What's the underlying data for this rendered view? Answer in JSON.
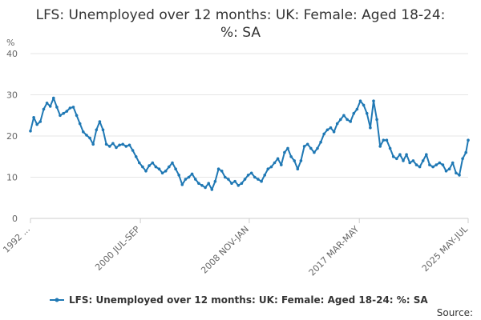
{
  "chart_data": {
    "type": "line",
    "title_lines": [
      "LFS: Unemployed over 12 months: UK: Female: Aged 18-24:",
      "%: SA"
    ],
    "ylabel": "%",
    "ylim": [
      0,
      40
    ],
    "yticks": [
      0,
      10,
      20,
      30,
      40
    ],
    "xlim": [
      1992.25,
      2025.42
    ],
    "x_tick_labels": [
      {
        "x": 1992.25,
        "label": "1992 ..."
      },
      {
        "x": 2000.58,
        "label": "2000 JUL-SEP"
      },
      {
        "x": 2008.83,
        "label": "2008 NOV-JAN"
      },
      {
        "x": 2017.17,
        "label": "2017 MAR-MAY"
      },
      {
        "x": 2025.42,
        "label": "2025 MAY-JUL"
      }
    ],
    "grid": true,
    "legend_position": "bottom",
    "series": [
      {
        "name": "LFS: Unemployed over 12 months: UK: Female: Aged 18-24: %: SA",
        "color": "#1f78b4",
        "points": [
          [
            1992.25,
            21.2
          ],
          [
            1992.5,
            24.5
          ],
          [
            1992.75,
            22.8
          ],
          [
            1993.0,
            23.5
          ],
          [
            1993.25,
            26.5
          ],
          [
            1993.5,
            28.0
          ],
          [
            1993.75,
            27.2
          ],
          [
            1994.0,
            29.2
          ],
          [
            1994.25,
            27.0
          ],
          [
            1994.5,
            25.0
          ],
          [
            1994.75,
            25.5
          ],
          [
            1995.0,
            26.0
          ],
          [
            1995.25,
            26.8
          ],
          [
            1995.5,
            27.0
          ],
          [
            1995.75,
            25.0
          ],
          [
            1996.0,
            23.0
          ],
          [
            1996.25,
            21.0
          ],
          [
            1996.5,
            20.2
          ],
          [
            1996.75,
            19.5
          ],
          [
            1997.0,
            18.0
          ],
          [
            1997.25,
            21.5
          ],
          [
            1997.5,
            23.5
          ],
          [
            1997.75,
            21.5
          ],
          [
            1998.0,
            18.0
          ],
          [
            1998.25,
            17.5
          ],
          [
            1998.5,
            18.2
          ],
          [
            1998.75,
            17.2
          ],
          [
            1999.0,
            17.8
          ],
          [
            1999.25,
            18.0
          ],
          [
            1999.5,
            17.5
          ],
          [
            1999.75,
            17.8
          ],
          [
            2000.0,
            16.5
          ],
          [
            2000.25,
            15.0
          ],
          [
            2000.5,
            13.5
          ],
          [
            2000.75,
            12.5
          ],
          [
            2001.0,
            11.5
          ],
          [
            2001.25,
            12.8
          ],
          [
            2001.5,
            13.5
          ],
          [
            2001.75,
            12.5
          ],
          [
            2002.0,
            12.0
          ],
          [
            2002.25,
            11.0
          ],
          [
            2002.5,
            11.5
          ],
          [
            2002.75,
            12.5
          ],
          [
            2003.0,
            13.5
          ],
          [
            2003.25,
            12.0
          ],
          [
            2003.5,
            10.5
          ],
          [
            2003.75,
            8.2
          ],
          [
            2004.0,
            9.5
          ],
          [
            2004.25,
            10.0
          ],
          [
            2004.5,
            10.8
          ],
          [
            2004.75,
            9.5
          ],
          [
            2005.0,
            8.5
          ],
          [
            2005.25,
            8.0
          ],
          [
            2005.5,
            7.5
          ],
          [
            2005.75,
            8.5
          ],
          [
            2006.0,
            7.0
          ],
          [
            2006.25,
            9.0
          ],
          [
            2006.5,
            12.0
          ],
          [
            2006.75,
            11.5
          ],
          [
            2007.0,
            10.0
          ],
          [
            2007.25,
            9.5
          ],
          [
            2007.5,
            8.5
          ],
          [
            2007.75,
            9.0
          ],
          [
            2008.0,
            8.0
          ],
          [
            2008.25,
            8.5
          ],
          [
            2008.5,
            9.5
          ],
          [
            2008.75,
            10.5
          ],
          [
            2009.0,
            11.0
          ],
          [
            2009.25,
            10.0
          ],
          [
            2009.5,
            9.5
          ],
          [
            2009.75,
            9.0
          ],
          [
            2010.0,
            10.5
          ],
          [
            2010.25,
            12.0
          ],
          [
            2010.5,
            12.5
          ],
          [
            2010.75,
            13.5
          ],
          [
            2011.0,
            14.5
          ],
          [
            2011.25,
            13.0
          ],
          [
            2011.5,
            16.0
          ],
          [
            2011.75,
            17.0
          ],
          [
            2012.0,
            15.0
          ],
          [
            2012.25,
            14.0
          ],
          [
            2012.5,
            12.0
          ],
          [
            2012.75,
            14.0
          ],
          [
            2013.0,
            17.5
          ],
          [
            2013.25,
            18.0
          ],
          [
            2013.5,
            17.0
          ],
          [
            2013.75,
            16.0
          ],
          [
            2014.0,
            17.0
          ],
          [
            2014.25,
            18.5
          ],
          [
            2014.5,
            20.5
          ],
          [
            2014.75,
            21.5
          ],
          [
            2015.0,
            22.0
          ],
          [
            2015.25,
            21.0
          ],
          [
            2015.5,
            23.0
          ],
          [
            2015.75,
            24.0
          ],
          [
            2016.0,
            25.0
          ],
          [
            2016.25,
            24.0
          ],
          [
            2016.5,
            23.5
          ],
          [
            2016.75,
            25.5
          ],
          [
            2017.0,
            26.5
          ],
          [
            2017.25,
            28.5
          ],
          [
            2017.5,
            27.5
          ],
          [
            2017.75,
            25.5
          ],
          [
            2018.0,
            22.0
          ],
          [
            2018.25,
            28.5
          ],
          [
            2018.5,
            24.0
          ],
          [
            2018.75,
            17.5
          ],
          [
            2019.0,
            19.0
          ],
          [
            2019.25,
            19.0
          ],
          [
            2019.5,
            17.0
          ],
          [
            2019.75,
            15.0
          ],
          [
            2020.0,
            14.5
          ],
          [
            2020.25,
            15.5
          ],
          [
            2020.5,
            14.0
          ],
          [
            2020.75,
            15.5
          ],
          [
            2021.0,
            13.5
          ],
          [
            2021.25,
            14.0
          ],
          [
            2021.5,
            13.0
          ],
          [
            2021.75,
            12.5
          ],
          [
            2022.0,
            14.0
          ],
          [
            2022.25,
            15.5
          ],
          [
            2022.5,
            13.0
          ],
          [
            2022.75,
            12.5
          ],
          [
            2023.0,
            13.0
          ],
          [
            2023.25,
            13.5
          ],
          [
            2023.5,
            13.0
          ],
          [
            2023.75,
            11.5
          ],
          [
            2024.0,
            12.0
          ],
          [
            2024.25,
            13.5
          ],
          [
            2024.5,
            11.0
          ],
          [
            2024.75,
            10.5
          ],
          [
            2025.0,
            14.5
          ],
          [
            2025.25,
            16.0
          ],
          [
            2025.42,
            19.0
          ]
        ]
      }
    ]
  },
  "legend": {
    "label": "LFS: Unemployed over 12 months: UK: Female: Aged 18-24: %: SA"
  },
  "footer": {
    "source_label": "Source:"
  }
}
